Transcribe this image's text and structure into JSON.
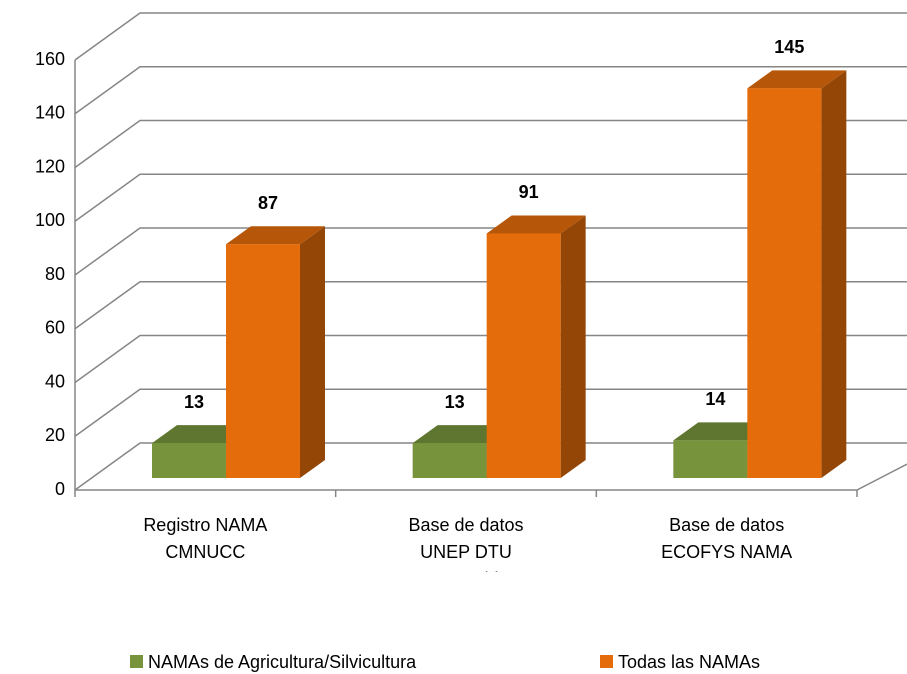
{
  "chart_data": {
    "type": "bar3d",
    "categories": [
      "Registro NAMA CMNUCC",
      "Base de datos UNEP DTU Partnership*",
      "Base de datos ECOFYS NAMA"
    ],
    "series": [
      {
        "name": "NAMAs de Agricultura/Silvicultura",
        "color": "#77933c",
        "values": [
          13,
          13,
          14
        ]
      },
      {
        "name": "Todas las NAMAs",
        "color": "#e46c0a",
        "values": [
          87,
          91,
          145
        ]
      }
    ],
    "ylim": [
      0,
      160
    ],
    "yticks": [
      0,
      20,
      40,
      60,
      80,
      100,
      120,
      140,
      160
    ],
    "grid": true,
    "legend": "bottom"
  }
}
